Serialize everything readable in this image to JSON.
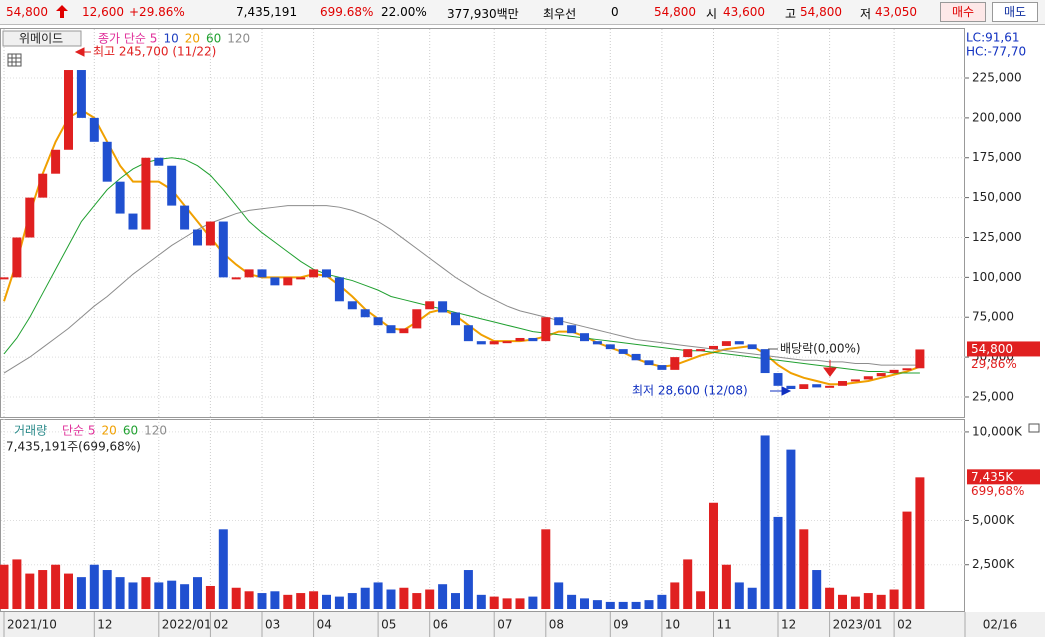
{
  "header": {
    "price": "54,800",
    "change": "12,600",
    "change_rate": "+29.86%",
    "volume": "7,435,191",
    "volume_rate": "699.68%",
    "turnover": "22.00%",
    "market_cap": "377,930백만",
    "best_label": "최우선",
    "best_value": "0",
    "best_price": "54,800",
    "open_label": "시",
    "open": "43,600",
    "high_label": "고",
    "high": "54,800",
    "low_label": "저",
    "low": "43,050",
    "buy": "매수",
    "sell": "매도"
  },
  "chart_data": [
    {
      "type": "candlestick",
      "title": "위메이드",
      "ma_labels": [
        {
          "label": "종가 단순 5",
          "color": "#e0309a"
        },
        {
          "label": "10",
          "color": "#2040c0"
        }
      ],
      "side_labels": [
        "LC:91,61",
        "HC:-77,70"
      ],
      "annotations": [
        "최고 245,700 (11/22)",
        "배당락(0,00%)",
        "최저 28,600 (12/08)"
      ],
      "last_label": "54,800",
      "last_change": "29,86%",
      "up_color": "#e02020",
      "down_color": "#2050d0",
      "categories": [
        "2021/10",
        null,
        null,
        null,
        null,
        null,
        null,
        "12",
        null,
        null,
        null,
        null,
        "2022/01",
        null,
        null,
        null,
        "02",
        null,
        null,
        null,
        "03",
        null,
        null,
        null,
        "04",
        null,
        null,
        null,
        null,
        "05",
        null,
        null,
        null,
        "06",
        null,
        null,
        null,
        null,
        "07",
        null,
        null,
        null,
        "08",
        null,
        null,
        null,
        null,
        "09",
        null,
        null,
        null,
        "10",
        null,
        null,
        null,
        "11",
        null,
        null,
        null,
        null,
        "12",
        null,
        null,
        null,
        "2023/01",
        null,
        null,
        null,
        null,
        "02",
        null,
        null
      ],
      "values": [
        100000,
        125000,
        150000,
        165000,
        180000,
        230000,
        200000,
        185000,
        160000,
        140000,
        130000,
        175000,
        170000,
        145000,
        130000,
        120000,
        135000,
        100000,
        100000,
        105000,
        100000,
        95000,
        100000,
        100000,
        105000,
        100000,
        85000,
        80000,
        75000,
        70000,
        65000,
        68000,
        80000,
        85000,
        78000,
        70000,
        60000,
        58000,
        60000,
        60000,
        62000,
        60000,
        75000,
        70000,
        65000,
        60000,
        58000,
        55000,
        52000,
        48000,
        45000,
        42000,
        50000,
        55000,
        55000,
        57000,
        60000,
        58000,
        55000,
        40000,
        32000,
        30000,
        33000,
        31000,
        32000,
        35000,
        36000,
        38000,
        40000,
        42000,
        43000,
        54800
      ],
      "series": [
        {
          "name": "20",
          "color": "#f0a000",
          "values": [
            85000,
            110000,
            140000,
            165000,
            185000,
            200000,
            205000,
            200000,
            185000,
            170000,
            160000,
            160000,
            160000,
            155000,
            145000,
            135000,
            125000,
            115000,
            108000,
            102000,
            100000,
            100000,
            100000,
            100000,
            102000,
            101000,
            95000,
            88000,
            80000,
            74000,
            68000,
            67000,
            72000,
            78000,
            80000,
            76000,
            70000,
            64000,
            60000,
            60000,
            60000,
            61000,
            63000,
            66000,
            66000,
            63000,
            59000,
            56000,
            53000,
            49000,
            46000,
            44000,
            45000,
            48000,
            51000,
            53000,
            55000,
            56000,
            57000,
            52000,
            45000,
            40000,
            37000,
            35000,
            33000,
            33000,
            34000,
            35000,
            37000,
            39000,
            41000,
            44000
          ]
        },
        {
          "name": "60",
          "color": "#20a030",
          "values": [
            52000,
            62000,
            75000,
            90000,
            105000,
            120000,
            135000,
            145000,
            155000,
            162000,
            168000,
            172000,
            174000,
            175000,
            174000,
            170000,
            164000,
            155000,
            145000,
            135000,
            128000,
            122000,
            116000,
            110000,
            105000,
            102000,
            100000,
            98000,
            95000,
            92000,
            88000,
            86000,
            84000,
            82000,
            80000,
            78000,
            76000,
            74000,
            72000,
            70000,
            68000,
            66000,
            65000,
            64000,
            63000,
            62000,
            61000,
            60000,
            59000,
            58000,
            57000,
            56000,
            55000,
            54000,
            54000,
            53000,
            52000,
            51000,
            50000,
            49000,
            48000,
            47000,
            46000,
            45000,
            44000,
            43000,
            42000,
            41000,
            41000,
            40000,
            40000,
            40000
          ]
        },
        {
          "name": "120",
          "color": "#8c8c8c",
          "values": [
            40000,
            45000,
            50000,
            56000,
            62000,
            68000,
            75000,
            82000,
            88000,
            95000,
            102000,
            108000,
            114000,
            120000,
            125000,
            130000,
            134000,
            137000,
            140000,
            142000,
            143000,
            144000,
            145000,
            145000,
            145000,
            145000,
            144000,
            142000,
            139000,
            135000,
            130000,
            124000,
            118000,
            112000,
            106000,
            100000,
            95000,
            90000,
            86000,
            82000,
            79000,
            77000,
            75000,
            73000,
            71000,
            69000,
            67000,
            65000,
            63000,
            61000,
            60000,
            59000,
            58000,
            57000,
            56000,
            55000,
            54000,
            53000,
            52000,
            51000,
            50000,
            49000,
            48000,
            48000,
            47000,
            47000,
            46000,
            46000,
            45000,
            45000,
            45000,
            45000
          ]
        }
      ],
      "ylim": [
        13700,
        255100
      ],
      "yticks": [
        {
          "value": 25000,
          "label": "25,000"
        },
        {
          "value": 50000,
          "label": "50,000"
        },
        {
          "value": 75000,
          "label": "75,000"
        },
        {
          "value": 100000,
          "label": "100,000"
        },
        {
          "value": 125000,
          "label": "125,000"
        },
        {
          "value": 150000,
          "label": "150,000"
        },
        {
          "value": 175000,
          "label": "175,000"
        },
        {
          "value": 200000,
          "label": "200,000"
        },
        {
          "value": 225000,
          "label": "225,000"
        }
      ],
      "grid": true
    },
    {
      "type": "bar",
      "title": "거래량",
      "ma_labels": [
        {
          "label": "단순 5",
          "color": "#e0309a"
        },
        {
          "label": "20",
          "color": "#f0a000"
        },
        {
          "label": "60",
          "color": "#20a030"
        },
        {
          "label": "120",
          "color": "#8c8c8c"
        }
      ],
      "subtitle": "7,435,191주(699,68%)",
      "last_label": "7,435K",
      "last_change": "699,68%",
      "values": [
        2500,
        2800,
        2000,
        2200,
        2500,
        2000,
        1800,
        2500,
        2200,
        1800,
        1500,
        1800,
        1500,
        1600,
        1400,
        1800,
        1300,
        4500,
        1200,
        1000,
        900,
        1000,
        800,
        900,
        1000,
        800,
        700,
        900,
        1200,
        1500,
        1100,
        1200,
        900,
        1100,
        1400,
        900,
        2200,
        800,
        700,
        600,
        600,
        700,
        4500,
        1500,
        800,
        600,
        500,
        400,
        400,
        400,
        500,
        800,
        1500,
        2800,
        1000,
        6000,
        2500,
        1500,
        1200,
        9800,
        5200,
        9000,
        4500,
        2200,
        1200,
        800,
        700,
        900,
        800,
        1100,
        5500,
        7435
      ],
      "ylim": [
        0,
        10560
      ],
      "yticks": [
        {
          "value": 2500,
          "label": "2,500K"
        },
        {
          "value": 5000,
          "label": "5,000K"
        },
        {
          "value": 10000,
          "label": "10,000K"
        }
      ],
      "grid": true
    }
  ],
  "current_date": "02/16"
}
